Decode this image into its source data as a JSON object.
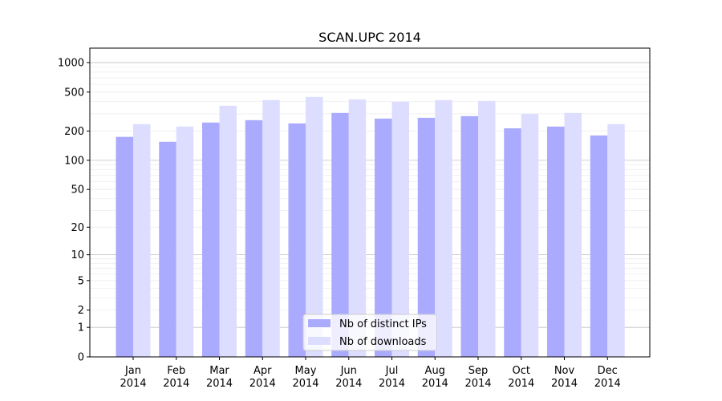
{
  "chart_data": {
    "type": "bar",
    "title": "SCAN.UPC 2014",
    "xlabel": "",
    "ylabel": "",
    "yscale": "symlog",
    "ylim": [
      0,
      1400
    ],
    "yticks": [
      0,
      1,
      2,
      5,
      10,
      20,
      50,
      100,
      200,
      500,
      1000
    ],
    "ytick_labels": [
      "0",
      "1",
      "2",
      "5",
      "10",
      "20",
      "50",
      "100",
      "200",
      "500",
      "1000"
    ],
    "categories": [
      [
        "Jan",
        "2014"
      ],
      [
        "Feb",
        "2014"
      ],
      [
        "Mar",
        "2014"
      ],
      [
        "Apr",
        "2014"
      ],
      [
        "May",
        "2014"
      ],
      [
        "Jun",
        "2014"
      ],
      [
        "Jul",
        "2014"
      ],
      [
        "Aug",
        "2014"
      ],
      [
        "Sep",
        "2014"
      ],
      [
        "Oct",
        "2014"
      ],
      [
        "Nov",
        "2014"
      ],
      [
        "Dec",
        "2014"
      ]
    ],
    "series": [
      {
        "name": "Nb of distinct IPs",
        "color": "#aaaaff",
        "values": [
          174,
          155,
          244,
          258,
          239,
          306,
          268,
          273,
          284,
          213,
          222,
          180
        ]
      },
      {
        "name": "Nb of downloads",
        "color": "#ddddff",
        "values": [
          235,
          222,
          362,
          414,
          446,
          421,
          398,
          414,
          406,
          300,
          306,
          235
        ]
      }
    ],
    "grid": true,
    "legend": "lower-center"
  }
}
